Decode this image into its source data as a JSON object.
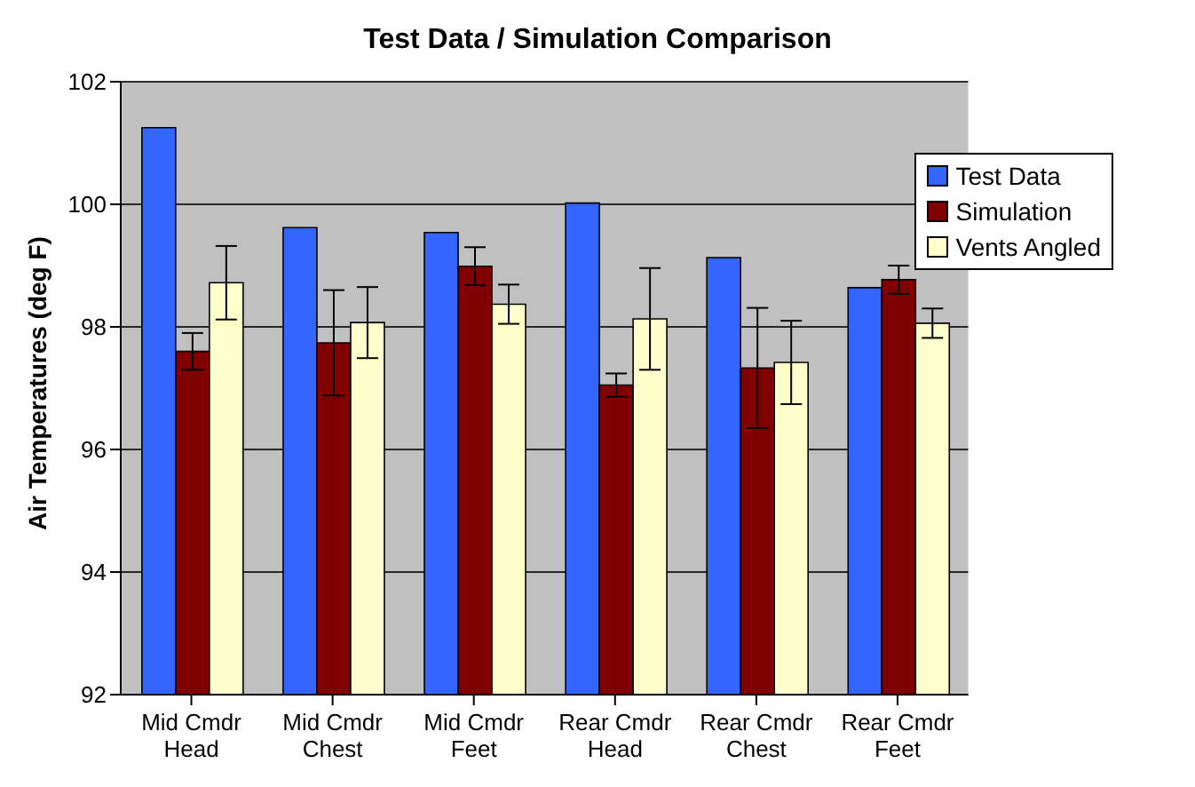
{
  "chart_data": {
    "type": "bar",
    "title": "Test Data / Simulation Comparison",
    "ylabel": "Air Temperatures (deg F)",
    "categories": [
      "Mid Cmdr Head",
      "Mid Cmdr Chest",
      "Mid Cmdr Feet",
      "Rear Cmdr Head",
      "Rear Cmdr Chest",
      "Rear Cmdr Feet"
    ],
    "series": [
      {
        "name": "Test Data",
        "color": "#3366ff",
        "values": [
          101.25,
          99.62,
          99.54,
          100.02,
          99.13,
          98.64
        ]
      },
      {
        "name": "Simulation",
        "color": "#800000",
        "values": [
          97.6,
          97.74,
          98.99,
          97.05,
          97.33,
          98.77
        ],
        "errors": [
          0.3,
          0.86,
          0.31,
          0.19,
          0.98,
          0.23
        ]
      },
      {
        "name": "Vents Angled",
        "color": "#ffffcc",
        "values": [
          98.72,
          98.07,
          98.37,
          98.13,
          97.42,
          98.06
        ],
        "errors": [
          0.6,
          0.58,
          0.32,
          0.83,
          0.68,
          0.24
        ]
      }
    ],
    "ylim": [
      92,
      102
    ],
    "yticks": [
      92,
      94,
      96,
      98,
      100,
      102
    ],
    "grid": "y",
    "legend": "top right"
  }
}
